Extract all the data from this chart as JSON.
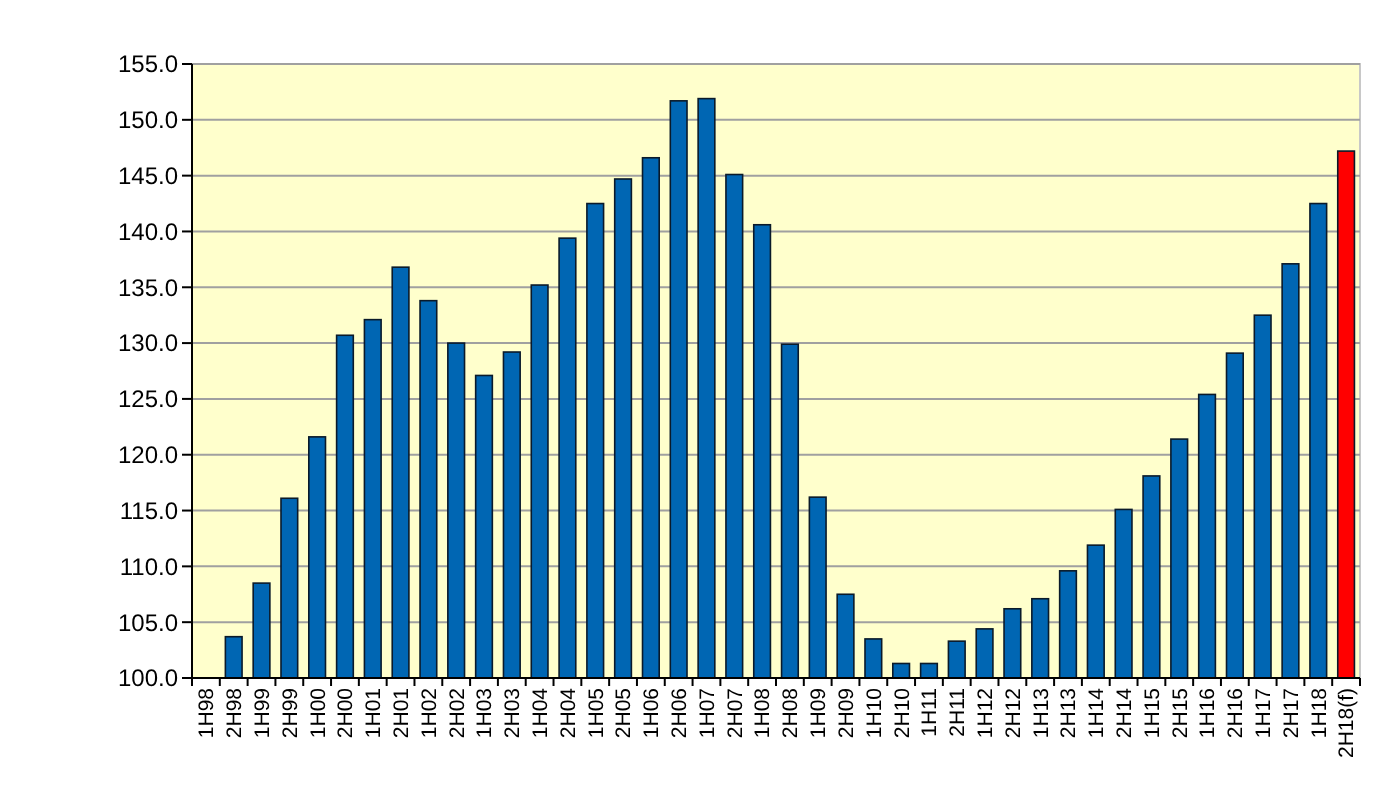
{
  "chart_data": {
    "type": "bar",
    "categories": [
      "1H98",
      "2H98",
      "1H99",
      "2H99",
      "1H00",
      "2H00",
      "1H01",
      "2H01",
      "1H02",
      "2H02",
      "1H03",
      "2H03",
      "1H04",
      "2H04",
      "1H05",
      "2H05",
      "1H06",
      "2H06",
      "1H07",
      "2H07",
      "1H08",
      "2H08",
      "1H09",
      "2H09",
      "1H10",
      "2H10",
      "1H11",
      "2H11",
      "1H12",
      "2H12",
      "1H13",
      "2H13",
      "1H14",
      "2H14",
      "1H15",
      "2H15",
      "1H16",
      "2H16",
      "1H17",
      "2H17",
      "1H18",
      "2H18(f)"
    ],
    "values": [
      100.0,
      103.7,
      108.5,
      116.1,
      121.6,
      130.7,
      132.1,
      136.8,
      133.8,
      130.0,
      127.1,
      129.2,
      135.2,
      139.4,
      142.5,
      144.7,
      146.6,
      151.7,
      151.9,
      145.1,
      140.6,
      129.9,
      116.2,
      107.5,
      103.5,
      101.3,
      101.3,
      103.3,
      104.4,
      106.2,
      107.1,
      109.6,
      111.9,
      115.1,
      118.1,
      121.4,
      125.4,
      129.1,
      132.5,
      137.1,
      142.5,
      147.2
    ],
    "colors": [
      "#0066b3",
      "#0066b3",
      "#0066b3",
      "#0066b3",
      "#0066b3",
      "#0066b3",
      "#0066b3",
      "#0066b3",
      "#0066b3",
      "#0066b3",
      "#0066b3",
      "#0066b3",
      "#0066b3",
      "#0066b3",
      "#0066b3",
      "#0066b3",
      "#0066b3",
      "#0066b3",
      "#0066b3",
      "#0066b3",
      "#0066b3",
      "#0066b3",
      "#0066b3",
      "#0066b3",
      "#0066b3",
      "#0066b3",
      "#0066b3",
      "#0066b3",
      "#0066b3",
      "#0066b3",
      "#0066b3",
      "#0066b3",
      "#0066b3",
      "#0066b3",
      "#0066b3",
      "#0066b3",
      "#0066b3",
      "#0066b3",
      "#0066b3",
      "#0066b3",
      "#0066b3",
      "#ff0000"
    ],
    "ylim": [
      100,
      155
    ],
    "yticks": [
      {
        "value": 100,
        "label": "100.0"
      },
      {
        "value": 105,
        "label": "105.0"
      },
      {
        "value": 110,
        "label": "110.0"
      },
      {
        "value": 115,
        "label": "115.0"
      },
      {
        "value": 120,
        "label": "120.0"
      },
      {
        "value": 125,
        "label": "125.0"
      },
      {
        "value": 130,
        "label": "130.0"
      },
      {
        "value": 135,
        "label": "135.0"
      },
      {
        "value": 140,
        "label": "140.0"
      },
      {
        "value": 145,
        "label": "145.0"
      },
      {
        "value": 150,
        "label": "150.0"
      },
      {
        "value": 155,
        "label": "155.0"
      }
    ],
    "grid": "y"
  }
}
